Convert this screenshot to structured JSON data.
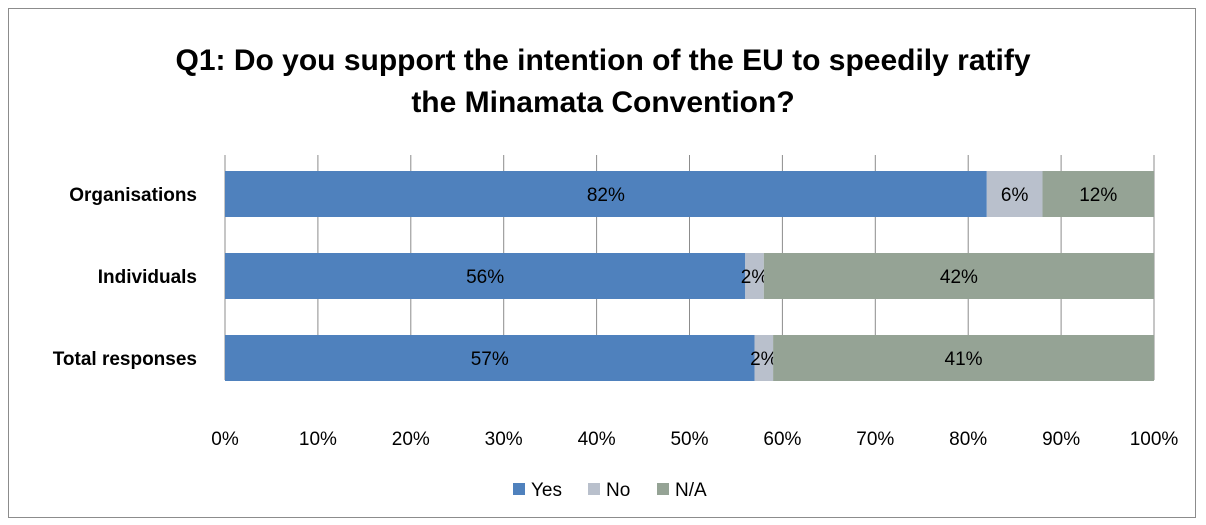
{
  "chart_data": {
    "type": "bar",
    "orientation": "horizontal",
    "stacked": true,
    "percent_stacked": true,
    "title_lines": [
      "Q1: Do you support the intention of the EU to speedily ratify",
      "the Minamata Convention?"
    ],
    "categories": [
      "Organisations",
      "Individuals",
      "Total responses"
    ],
    "series": [
      {
        "name": "Yes",
        "values": [
          82,
          56,
          57
        ],
        "labels": [
          "82%",
          "56%",
          "57%"
        ],
        "color": "#4f81bd"
      },
      {
        "name": "No",
        "values": [
          6,
          2,
          2
        ],
        "labels": [
          "6%",
          "2%",
          "2%"
        ],
        "color": "#b9c0cc"
      },
      {
        "name": "N/A",
        "values": [
          12,
          42,
          41
        ],
        "labels": [
          "12%",
          "42%",
          "41%"
        ],
        "color": "#95a395"
      }
    ],
    "x_ticks": [
      "0%",
      "10%",
      "20%",
      "30%",
      "40%",
      "50%",
      "60%",
      "70%",
      "80%",
      "90%",
      "100%"
    ],
    "xlim": [
      0,
      100
    ],
    "grid": "vertical",
    "legend_position": "bottom"
  }
}
